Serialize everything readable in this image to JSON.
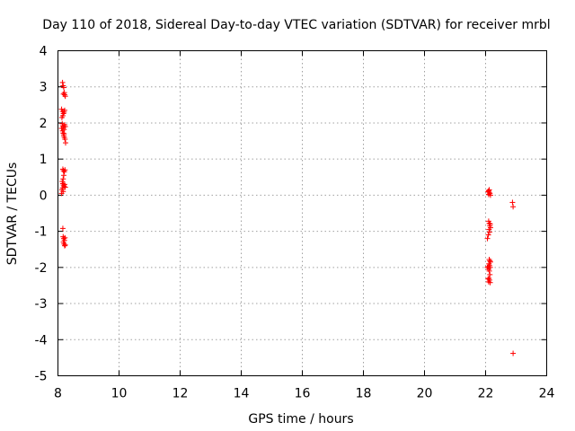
{
  "chart_data": {
    "type": "scatter",
    "title": "Day 110 of 2018, Sidereal Day-to-day VTEC variation (SDTVAR) for receiver mrbl",
    "xlabel": "GPS time / hours",
    "ylabel": "SDTVAR / TECUs",
    "xlim": [
      8,
      24
    ],
    "ylim": [
      -5,
      4
    ],
    "xticks": [
      "8",
      "10",
      "12",
      "14",
      "16",
      "18",
      "20",
      "22",
      "24"
    ],
    "yticks": [
      "4",
      "3",
      "2",
      "1",
      "0",
      "-1",
      "-2",
      "-3",
      "-4",
      "-5"
    ],
    "grid": true,
    "marker": "+",
    "color": "#ff0000",
    "series": [
      {
        "name": "SDTVAR",
        "points": [
          [
            8.15,
            3.12
          ],
          [
            8.17,
            3.03
          ],
          [
            8.19,
            2.98
          ],
          [
            8.21,
            2.84
          ],
          [
            8.22,
            2.78
          ],
          [
            8.24,
            2.74
          ],
          [
            8.18,
            2.8
          ],
          [
            8.12,
            2.38
          ],
          [
            8.15,
            2.32
          ],
          [
            8.18,
            2.26
          ],
          [
            8.2,
            2.3
          ],
          [
            8.22,
            2.35
          ],
          [
            8.16,
            2.2
          ],
          [
            8.13,
            2.15
          ],
          [
            8.14,
            1.98
          ],
          [
            8.16,
            1.92
          ],
          [
            8.18,
            1.88
          ],
          [
            8.2,
            1.82
          ],
          [
            8.22,
            1.95
          ],
          [
            8.24,
            1.9
          ],
          [
            8.12,
            1.85
          ],
          [
            8.15,
            1.78
          ],
          [
            8.17,
            1.72
          ],
          [
            8.19,
            1.65
          ],
          [
            8.21,
            1.6
          ],
          [
            8.23,
            1.55
          ],
          [
            8.25,
            1.45
          ],
          [
            8.2,
            1.7
          ],
          [
            8.16,
            0.72
          ],
          [
            8.18,
            0.68
          ],
          [
            8.21,
            0.65
          ],
          [
            8.23,
            0.7
          ],
          [
            8.19,
            0.55
          ],
          [
            8.17,
            0.45
          ],
          [
            8.14,
            0.38
          ],
          [
            8.16,
            0.32
          ],
          [
            8.18,
            0.28
          ],
          [
            8.2,
            0.25
          ],
          [
            8.22,
            0.3
          ],
          [
            8.24,
            0.22
          ],
          [
            8.15,
            0.2
          ],
          [
            8.13,
            0.15
          ],
          [
            8.17,
            0.1
          ],
          [
            8.12,
            0.05
          ],
          [
            8.16,
            -0.92
          ],
          [
            8.17,
            -1.15
          ],
          [
            8.19,
            -1.2
          ],
          [
            8.21,
            -1.25
          ],
          [
            8.23,
            -1.18
          ],
          [
            8.18,
            -1.3
          ],
          [
            8.2,
            -1.35
          ],
          [
            8.22,
            -1.4
          ],
          [
            8.24,
            -1.38
          ],
          [
            22.08,
            0.1
          ],
          [
            22.1,
            0.12
          ],
          [
            22.12,
            0.08
          ],
          [
            22.14,
            0.05
          ],
          [
            22.16,
            0.0
          ],
          [
            22.12,
            0.15
          ],
          [
            22.1,
            0.02
          ],
          [
            22.1,
            -0.72
          ],
          [
            22.12,
            -0.78
          ],
          [
            22.14,
            -0.85
          ],
          [
            22.16,
            -0.9
          ],
          [
            22.11,
            -0.95
          ],
          [
            22.13,
            -1.02
          ],
          [
            22.15,
            -0.8
          ],
          [
            22.09,
            -1.1
          ],
          [
            22.06,
            -1.2
          ],
          [
            22.12,
            -1.78
          ],
          [
            22.14,
            -1.82
          ],
          [
            22.16,
            -1.85
          ],
          [
            22.11,
            -1.9
          ],
          [
            22.13,
            -1.95
          ],
          [
            22.15,
            -2.0
          ],
          [
            22.08,
            -1.98
          ],
          [
            22.1,
            -2.05
          ],
          [
            22.06,
            -2.0
          ],
          [
            22.12,
            -2.1
          ],
          [
            22.14,
            -2.2
          ],
          [
            22.11,
            -2.3
          ],
          [
            22.13,
            -2.35
          ],
          [
            22.15,
            -2.42
          ],
          [
            22.1,
            -2.4
          ],
          [
            22.08,
            -2.32
          ],
          [
            22.88,
            -0.2
          ],
          [
            22.9,
            -0.32
          ],
          [
            22.9,
            -4.38
          ]
        ]
      }
    ]
  }
}
